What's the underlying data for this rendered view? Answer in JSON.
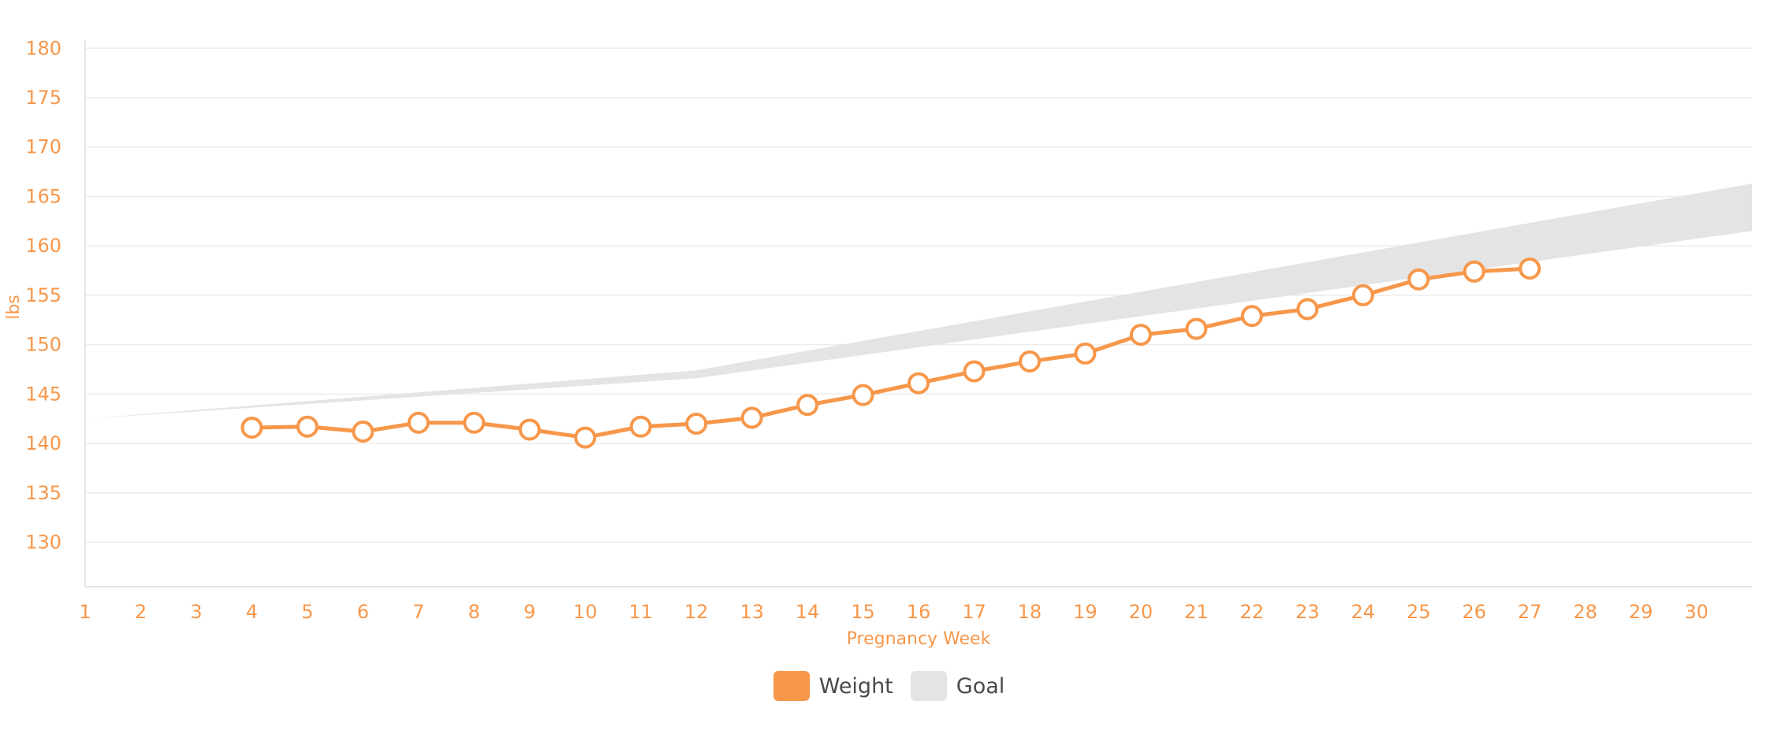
{
  "chart_data": {
    "type": "line",
    "title": "",
    "xlabel": "Pregnancy Week",
    "ylabel": "lbs",
    "x": [
      1,
      2,
      3,
      4,
      5,
      6,
      7,
      8,
      9,
      10,
      11,
      12,
      13,
      14,
      15,
      16,
      17,
      18,
      19,
      20,
      21,
      22,
      23,
      24,
      25,
      26,
      27,
      28,
      29,
      30
    ],
    "x_tick_labels": [
      "1",
      "2",
      "3",
      "4",
      "5",
      "6",
      "7",
      "8",
      "9",
      "10",
      "11",
      "12",
      "13",
      "14",
      "15",
      "16",
      "17",
      "18",
      "19",
      "20",
      "21",
      "22",
      "23",
      "24",
      "25",
      "26",
      "27",
      "28",
      "29",
      "30"
    ],
    "y_ticks": [
      130,
      135,
      140,
      145,
      150,
      155,
      160,
      165,
      170,
      175,
      180
    ],
    "y_tick_labels": [
      "130",
      "135",
      "140",
      "145",
      "150",
      "155",
      "160",
      "165",
      "170",
      "175",
      "180"
    ],
    "xlim": [
      1,
      31
    ],
    "ylim": [
      125.5,
      180.5
    ],
    "grid": true,
    "legend_position": "bottom-center",
    "colors": {
      "weight": "#f7974a",
      "goal": "#e4e4e4",
      "text": "#f7974a",
      "legend_text": "#4a4a4a"
    },
    "series": [
      {
        "name": "Weight",
        "kind": "line-with-markers",
        "x": [
          4,
          5,
          6,
          7,
          8,
          9,
          10,
          11,
          12,
          13,
          14,
          15,
          16,
          17,
          18,
          19,
          20,
          21,
          22,
          23,
          24,
          25,
          26,
          27
        ],
        "values": [
          141.6,
          141.7,
          141.2,
          142.1,
          142.1,
          141.4,
          140.6,
          141.7,
          142.0,
          142.6,
          143.9,
          144.9,
          146.1,
          147.3,
          148.3,
          149.1,
          151.0,
          151.6,
          152.9,
          153.6,
          155.0,
          156.6,
          157.4,
          157.7
        ]
      },
      {
        "name": "Goal",
        "kind": "band",
        "x": [
          1,
          12,
          31
        ],
        "lower": [
          142.5,
          146.6,
          161.5
        ],
        "upper": [
          142.5,
          147.4,
          166.3
        ]
      }
    ]
  },
  "legend": {
    "weight_label": "Weight",
    "goal_label": "Goal"
  }
}
